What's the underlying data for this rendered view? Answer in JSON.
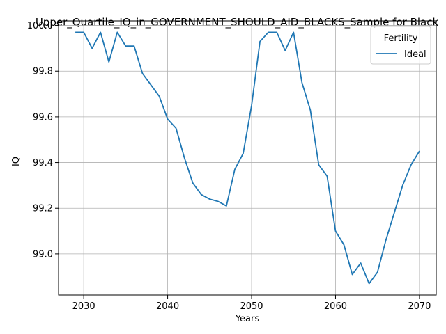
{
  "chart_data": {
    "type": "line",
    "title": "Upper_Quartile_IQ_in_GOVERNMENT_SHOULD_AID_BLACKS_Sample for Black",
    "xlabel": "Years",
    "ylabel": "IQ",
    "xlim": [
      2027,
      2072
    ],
    "ylim": [
      98.82,
      100.02
    ],
    "xticks": [
      2030,
      2040,
      2050,
      2060,
      2070
    ],
    "yticks": [
      99.0,
      99.2,
      99.4,
      99.6,
      99.8,
      100.0
    ],
    "ytick_labels": [
      "99.0",
      "99.2",
      "99.4",
      "99.6",
      "99.8",
      "100.0"
    ],
    "grid": true,
    "legend": {
      "title": "Fertility",
      "placement": "top-right"
    },
    "series": [
      {
        "name": "Ideal",
        "color": "#1f77b4",
        "x": [
          2029,
          2030,
          2031,
          2032,
          2033,
          2034,
          2035,
          2036,
          2037,
          2038,
          2039,
          2040,
          2041,
          2042,
          2043,
          2044,
          2045,
          2046,
          2047,
          2048,
          2049,
          2050,
          2051,
          2052,
          2053,
          2054,
          2055,
          2056,
          2057,
          2058,
          2059,
          2060,
          2061,
          2062,
          2063,
          2064,
          2065,
          2066,
          2067,
          2068,
          2069,
          2070
        ],
        "y": [
          99.97,
          99.97,
          99.9,
          99.97,
          99.84,
          99.97,
          99.91,
          99.91,
          99.79,
          99.74,
          99.69,
          99.59,
          99.55,
          99.42,
          99.31,
          99.26,
          99.24,
          99.23,
          99.21,
          99.37,
          99.44,
          99.65,
          99.93,
          99.97,
          99.97,
          99.89,
          99.97,
          99.75,
          99.63,
          99.39,
          99.34,
          99.1,
          99.04,
          98.91,
          98.96,
          98.87,
          98.92,
          99.06,
          99.18,
          99.3,
          99.39,
          99.45
        ]
      }
    ]
  }
}
